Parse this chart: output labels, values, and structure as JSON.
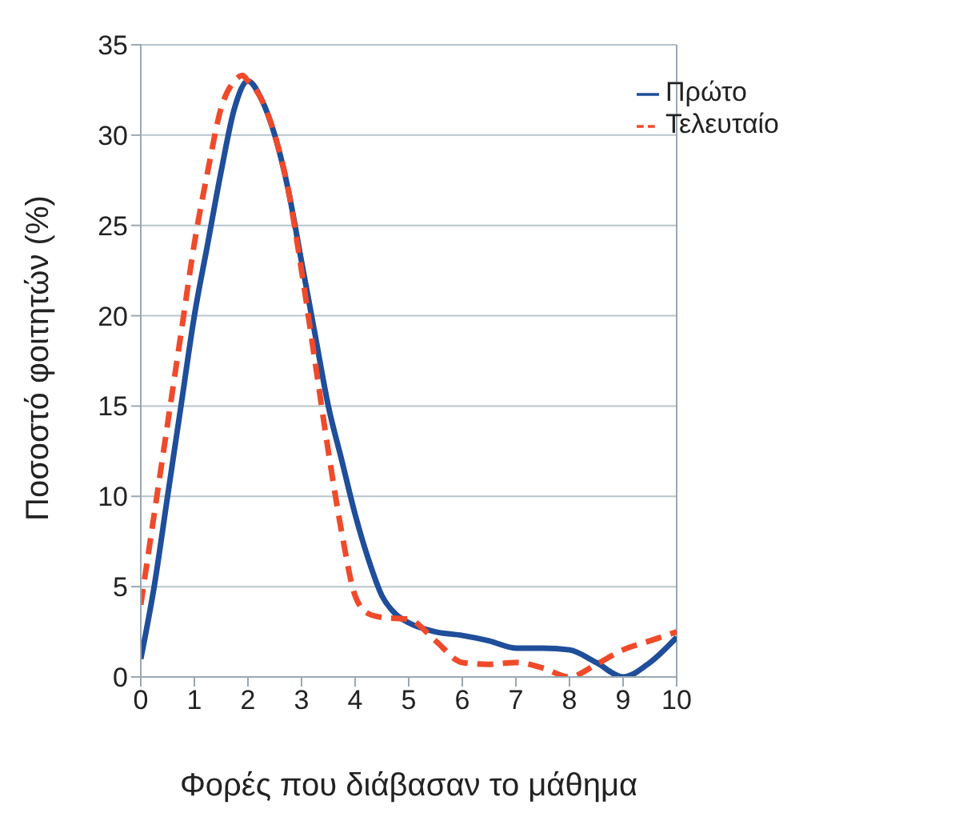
{
  "chart_data": {
    "type": "line",
    "xlabel": "Φορές που διάβασαν το μάθημα",
    "ylabel": "Ποσοστό φοιτητών (%)",
    "xlim": [
      0,
      10
    ],
    "xticks": [
      0,
      1,
      2,
      3,
      4,
      5,
      6,
      7,
      8,
      9,
      10
    ],
    "ylim": [
      0,
      35
    ],
    "yticks": [
      0,
      5,
      10,
      15,
      20,
      25,
      30,
      35
    ],
    "grid": "y",
    "legend": "top right",
    "marker": "none",
    "series": [
      {
        "name": "Πρώτο",
        "color": "#1f4e9a",
        "line_style": "solid",
        "x": [
          0,
          0.25,
          0.5,
          0.75,
          1,
          1.25,
          1.5,
          1.75,
          2,
          2.25,
          2.5,
          2.75,
          3,
          3.25,
          3.5,
          3.75,
          4,
          4.25,
          4.5,
          4.75,
          5,
          5.5,
          6,
          6.5,
          7,
          7.5,
          8,
          8.5,
          9,
          9.5,
          10
        ],
        "values": [
          1,
          5,
          10,
          15,
          20,
          24,
          28,
          31.5,
          33,
          32,
          30,
          27,
          23,
          19,
          15,
          12,
          9,
          6.5,
          4.5,
          3.5,
          3,
          2.5,
          2.3,
          2,
          1.6,
          1.6,
          1.5,
          0.8,
          0,
          0.8,
          2.2
        ]
      },
      {
        "name": "Τελευταίο",
        "color": "#f04a2a",
        "line_style": "dashed",
        "x": [
          0,
          0.25,
          0.5,
          0.75,
          1,
          1.25,
          1.5,
          1.75,
          1.9,
          2,
          2.25,
          2.5,
          2.75,
          3,
          3.25,
          3.5,
          3.75,
          4,
          4.25,
          4.5,
          5,
          5.5,
          6,
          6.5,
          7,
          7.5,
          8,
          8.5,
          9,
          9.5,
          10
        ],
        "values": [
          4,
          9,
          14,
          19,
          24,
          28,
          31.5,
          33,
          33.3,
          33,
          32,
          30,
          27,
          22.5,
          17.5,
          12.5,
          8,
          4.5,
          3.5,
          3.3,
          3.2,
          2,
          0.8,
          0.7,
          0.8,
          0.5,
          0,
          0.7,
          1.5,
          2,
          2.5
        ]
      }
    ]
  }
}
